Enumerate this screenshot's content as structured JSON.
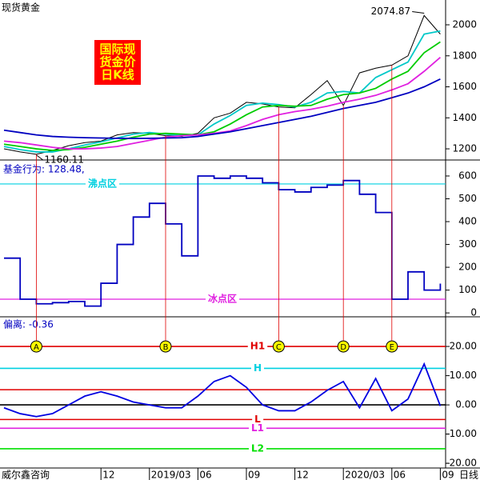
{
  "x_axis": {
    "source": "威尔鑫咨询",
    "unit": "日线",
    "categories": [
      null,
      null,
      null,
      null,
      null,
      null,
      "12",
      null,
      null,
      "2019/03",
      null,
      null,
      "06",
      null,
      null,
      "09",
      null,
      null,
      "12",
      null,
      null,
      "2020/03",
      null,
      null,
      "06",
      null,
      null,
      "09"
    ]
  },
  "markers": [
    {
      "label": "A",
      "at": 2
    },
    {
      "label": "B",
      "at": 10
    },
    {
      "label": "C",
      "at": 17
    },
    {
      "label": "D",
      "at": 21
    },
    {
      "label": "E",
      "at": 24
    }
  ],
  "chart_data": [
    {
      "type": "line",
      "title": "现货黄金",
      "badge": [
        "国际现",
        "货金价",
        "日K线"
      ],
      "ylim": [
        1128,
        2160
      ],
      "yticks": [
        1200,
        1400,
        1600,
        1800,
        2000
      ],
      "annotations": [
        {
          "value": 2074.87,
          "at": 26
        },
        {
          "value": 1160.11,
          "at": 2
        }
      ],
      "series": [
        {
          "color": "#000000",
          "values": [
            1200,
            1180,
            1165,
            1190,
            1220,
            1240,
            1250,
            1290,
            1305,
            1300,
            1285,
            1280,
            1300,
            1400,
            1430,
            1500,
            1490,
            1470,
            1465,
            1550,
            1640,
            1480,
            1690,
            1720,
            1740,
            1800,
            2060,
            1940
          ]
        },
        {
          "color": "#00c8c8",
          "values": [
            1215,
            1195,
            1180,
            1180,
            1200,
            1225,
            1245,
            1270,
            1295,
            1305,
            1295,
            1285,
            1290,
            1360,
            1415,
            1480,
            1495,
            1485,
            1470,
            1500,
            1560,
            1570,
            1560,
            1660,
            1710,
            1760,
            1940,
            1960
          ]
        },
        {
          "color": "#00cc00",
          "values": [
            1230,
            1215,
            1200,
            1190,
            1195,
            1210,
            1230,
            1250,
            1275,
            1295,
            1300,
            1295,
            1290,
            1310,
            1360,
            1420,
            1470,
            1480,
            1475,
            1480,
            1520,
            1550,
            1560,
            1590,
            1650,
            1700,
            1820,
            1890
          ]
        },
        {
          "color": "#e020e0",
          "values": [
            1250,
            1240,
            1225,
            1210,
            1200,
            1200,
            1205,
            1215,
            1235,
            1255,
            1275,
            1285,
            1290,
            1300,
            1315,
            1350,
            1390,
            1420,
            1440,
            1455,
            1475,
            1500,
            1520,
            1545,
            1580,
            1620,
            1700,
            1790
          ]
        },
        {
          "color": "#0000c0",
          "values": [
            1320,
            1305,
            1290,
            1280,
            1275,
            1272,
            1270,
            1268,
            1267,
            1268,
            1270,
            1272,
            1280,
            1295,
            1310,
            1330,
            1350,
            1370,
            1390,
            1410,
            1435,
            1460,
            1480,
            1500,
            1530,
            1560,
            1600,
            1650
          ]
        }
      ]
    },
    {
      "type": "step",
      "title": "基金行为: 128.48,",
      "ylim": [
        -17,
        663
      ],
      "yticks": [
        0,
        100,
        200,
        300,
        400,
        500,
        600
      ],
      "levels": [
        {
          "value": 565,
          "color": "#00d0e0",
          "label": "沸点区"
        },
        {
          "value": 60,
          "color": "#e020e0",
          "label": "冰点区"
        }
      ],
      "series": [
        {
          "color": "#0000c0",
          "values": [
            240,
            60,
            40,
            45,
            50,
            30,
            130,
            300,
            420,
            480,
            390,
            250,
            600,
            590,
            600,
            590,
            570,
            540,
            530,
            550,
            560,
            580,
            520,
            440,
            60,
            180,
            100,
            128.48
          ]
        }
      ]
    },
    {
      "type": "line",
      "title": "偏离: -0.36",
      "ylim": [
        -21.6,
        29.6
      ],
      "yticks": [
        {
          "value": 20,
          "label": "20.00"
        },
        {
          "value": 10,
          "label": "10.00"
        },
        {
          "value": 0,
          "label": "0.00"
        },
        {
          "value": -10,
          "label": "-10.00"
        },
        {
          "value": -20,
          "label": "-20.00"
        }
      ],
      "levels": [
        {
          "value": 20,
          "color": "#e00000",
          "label": "H1"
        },
        {
          "value": 12.5,
          "color": "#00d0e0",
          "label": "H"
        },
        {
          "value": 5.2,
          "color": "#e00000"
        },
        {
          "value": 0,
          "color": "#000000"
        },
        {
          "value": -5,
          "color": "#e00000",
          "label": "L"
        },
        {
          "value": -8,
          "color": "#e020e0",
          "label": "L1"
        },
        {
          "value": -15,
          "color": "#00e000",
          "label": "L2"
        }
      ],
      "series": [
        {
          "color": "#0000e0",
          "values": [
            -1,
            -3,
            -4,
            -3,
            0,
            3,
            4.5,
            3,
            1,
            0,
            -1,
            -1,
            3,
            8,
            10,
            6,
            0,
            -2,
            -2,
            1,
            5,
            8,
            -1,
            9,
            -2,
            2,
            14,
            -0.36
          ]
        }
      ]
    }
  ]
}
